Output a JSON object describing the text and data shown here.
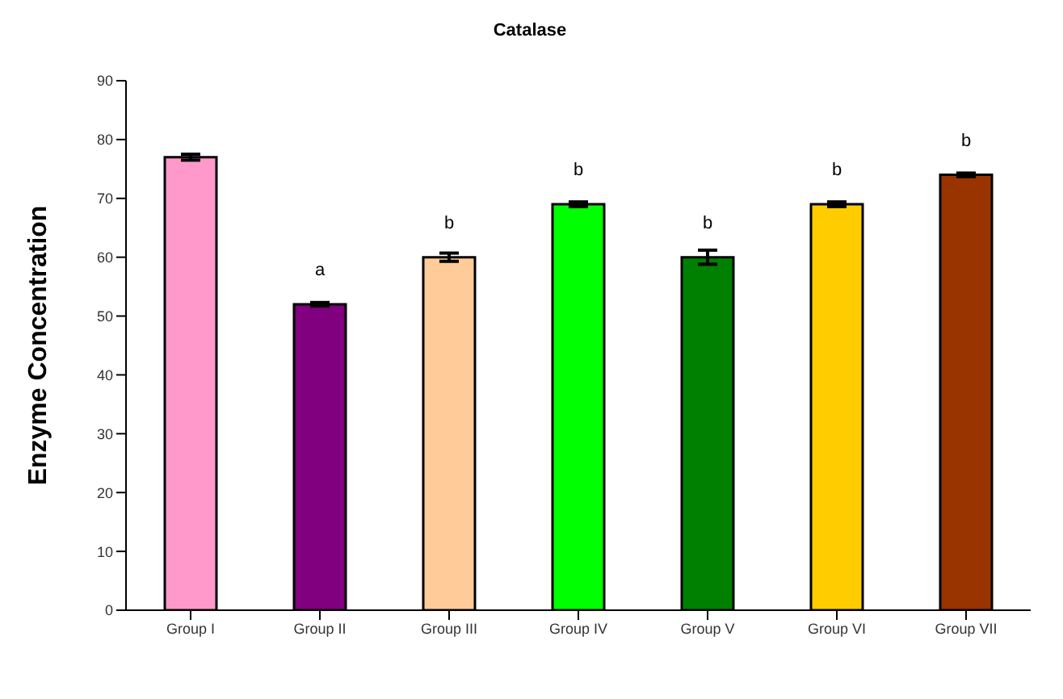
{
  "chart_data": {
    "type": "bar",
    "title": "Catalase",
    "ylabel": "Enzyme Concentration",
    "categories": [
      "Group I",
      "Group II",
      "Group III",
      "Group IV",
      "Group V",
      "Group VI",
      "Group VII"
    ],
    "values": [
      77,
      52,
      60,
      69,
      60,
      69,
      74
    ],
    "errors": [
      0.5,
      0.3,
      0.7,
      0.4,
      1.2,
      0.4,
      0.3
    ],
    "colors": [
      "#ff99cc",
      "#800080",
      "#ffcc99",
      "#00ff00",
      "#008000",
      "#ffcc00",
      "#993300"
    ],
    "ylim": [
      0,
      90
    ],
    "yticks": [
      0,
      10,
      20,
      30,
      40,
      50,
      60,
      70,
      80,
      90
    ],
    "annotations": [
      {
        "text": "a",
        "x": "Group II",
        "y": 52
      },
      {
        "text": "b",
        "x": "Group III",
        "y": 60
      },
      {
        "text": "b",
        "x": "Group IV",
        "y": 69
      },
      {
        "text": "b",
        "x": "Group V",
        "y": 60
      },
      {
        "text": "b",
        "x": "Group VI",
        "y": 69
      },
      {
        "text": "b",
        "x": "Group VII",
        "y": 74
      }
    ]
  }
}
